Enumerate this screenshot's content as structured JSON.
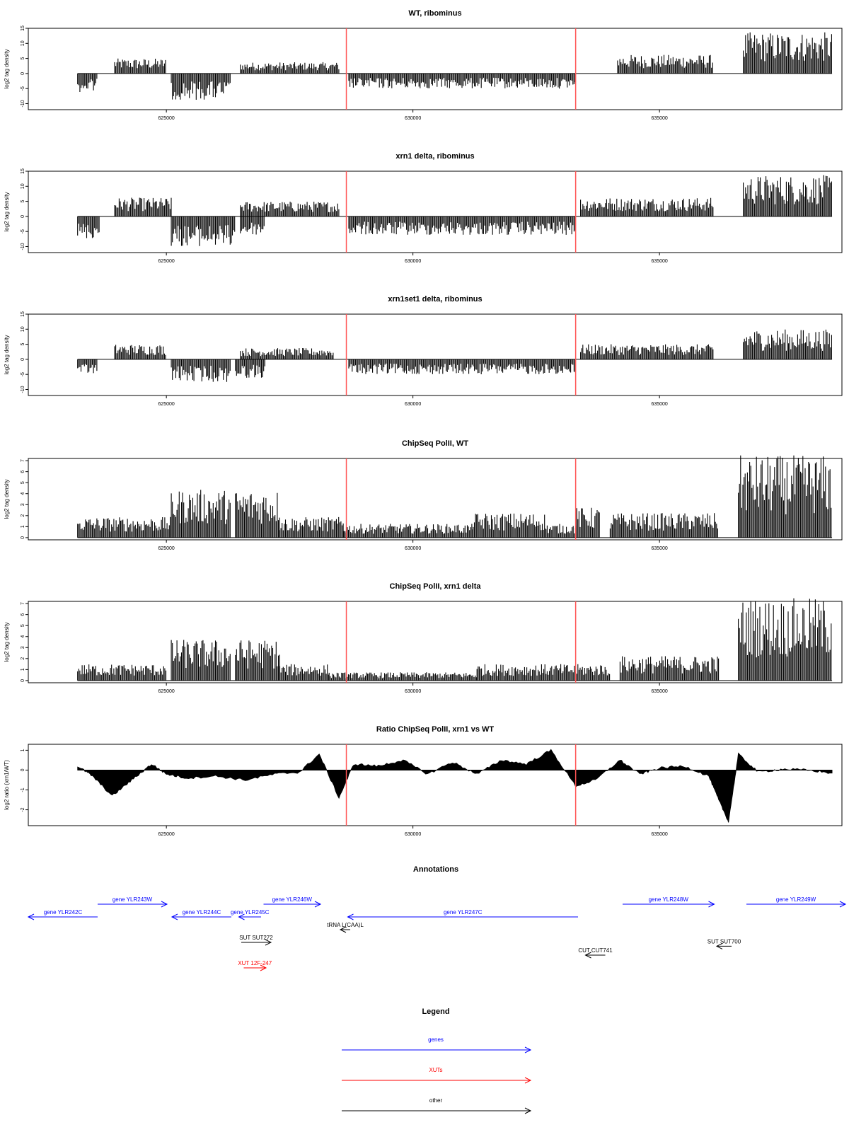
{
  "chart_data": [
    {
      "type": "bar",
      "title": "WT, ribominus",
      "ylabel": "log2 tag density",
      "ylim": [
        -12,
        15
      ],
      "yticks": [
        -10,
        -5,
        0,
        5,
        10,
        15
      ],
      "xlim": [
        622200,
        638700
      ],
      "xticks": [
        625000,
        630000,
        635000
      ],
      "x_tick_labels": [
        "625000",
        "630000",
        "635000"
      ],
      "markers": [
        628650,
        633300
      ],
      "marker_color": "#ff5555",
      "bar_color": "#000000",
      "plus_strand_segments": [
        {
          "x": [
            623950,
            625000
          ],
          "value": 4
        },
        {
          "x": [
            626500,
            628500
          ],
          "value": 3
        },
        {
          "x": [
            634150,
            636100
          ],
          "value": 5
        },
        {
          "x": [
            636700,
            638500
          ],
          "value": 11
        }
      ],
      "minus_strand_segments": [
        {
          "x": [
            623200,
            623600
          ],
          "value": -5
        },
        {
          "x": [
            625100,
            626300
          ],
          "value": -7
        },
        {
          "x": [
            628700,
            633300
          ],
          "value": -4
        }
      ]
    },
    {
      "type": "bar",
      "title": "xrn1 delta, ribominus",
      "ylabel": "log2 tag density",
      "ylim": [
        -12,
        15
      ],
      "yticks": [
        -10,
        -5,
        0,
        5,
        10,
        15
      ],
      "xlim": [
        622200,
        638700
      ],
      "xticks": [
        625000,
        630000,
        635000
      ],
      "x_tick_labels": [
        "625000",
        "630000",
        "635000"
      ],
      "markers": [
        628650,
        633300
      ],
      "marker_color": "#ff5555",
      "bar_color": "#000000",
      "plus_strand_segments": [
        {
          "x": [
            623950,
            625100
          ],
          "value": 5
        },
        {
          "x": [
            626500,
            628500
          ],
          "value": 4
        },
        {
          "x": [
            633400,
            636100
          ],
          "value": 5
        },
        {
          "x": [
            636700,
            638500
          ],
          "value": 11
        }
      ],
      "minus_strand_segments": [
        {
          "x": [
            623200,
            623650
          ],
          "value": -6
        },
        {
          "x": [
            625100,
            626400
          ],
          "value": -8
        },
        {
          "x": [
            626500,
            627000
          ],
          "value": -5
        },
        {
          "x": [
            628700,
            633300
          ],
          "value": -5
        }
      ]
    },
    {
      "type": "bar",
      "title": "xrn1set1 delta, ribominus",
      "ylabel": "log2 tag density",
      "ylim": [
        -12,
        15
      ],
      "yticks": [
        -10,
        -5,
        0,
        5,
        10,
        15
      ],
      "xlim": [
        622200,
        638700
      ],
      "xticks": [
        625000,
        630000,
        635000
      ],
      "x_tick_labels": [
        "625000",
        "630000",
        "635000"
      ],
      "markers": [
        628650,
        633300
      ],
      "marker_color": "#ff5555",
      "bar_color": "#000000",
      "plus_strand_segments": [
        {
          "x": [
            623950,
            625000
          ],
          "value": 4
        },
        {
          "x": [
            626500,
            628400
          ],
          "value": 3
        },
        {
          "x": [
            633400,
            636100
          ],
          "value": 4
        },
        {
          "x": [
            636700,
            638500
          ],
          "value": 8
        }
      ],
      "minus_strand_segments": [
        {
          "x": [
            623200,
            623600
          ],
          "value": -4
        },
        {
          "x": [
            625100,
            626300
          ],
          "value": -6
        },
        {
          "x": [
            626400,
            627000
          ],
          "value": -5
        },
        {
          "x": [
            628700,
            633300
          ],
          "value": -4
        }
      ]
    },
    {
      "type": "bar",
      "title": "ChipSeq PolII, WT",
      "ylabel": "log2 tag density",
      "ylim": [
        -0.2,
        7.2
      ],
      "yticks": [
        0,
        1,
        2,
        3,
        4,
        5,
        6,
        7
      ],
      "xlim": [
        622200,
        638700
      ],
      "xticks": [
        625000,
        630000,
        635000
      ],
      "x_tick_labels": [
        "625000",
        "630000",
        "635000"
      ],
      "markers": [
        628650,
        633300
      ],
      "marker_color": "#ff5555",
      "bar_color": "#000000",
      "segments": [
        {
          "x": [
            623200,
            625100
          ],
          "value": 1.5
        },
        {
          "x": [
            625100,
            626300
          ],
          "value": 3.5
        },
        {
          "x": [
            626400,
            627300
          ],
          "value": 3.5
        },
        {
          "x": [
            627300,
            628600
          ],
          "value": 1.5
        },
        {
          "x": [
            628600,
            631200
          ],
          "value": 1
        },
        {
          "x": [
            631200,
            632700
          ],
          "value": 1.8
        },
        {
          "x": [
            632700,
            633300
          ],
          "value": 1
        },
        {
          "x": [
            633300,
            633800
          ],
          "value": 2.2
        },
        {
          "x": [
            634000,
            636200
          ],
          "value": 1.8
        },
        {
          "x": [
            636600,
            638500
          ],
          "value": 6
        }
      ]
    },
    {
      "type": "bar",
      "title": "ChipSeq PolII, xrn1 delta",
      "ylabel": "log2 tag density",
      "ylim": [
        -0.2,
        7.2
      ],
      "yticks": [
        0,
        1,
        2,
        3,
        4,
        5,
        6,
        7
      ],
      "xlim": [
        622200,
        638700
      ],
      "xticks": [
        625000,
        630000,
        635000
      ],
      "x_tick_labels": [
        "625000",
        "630000",
        "635000"
      ],
      "markers": [
        628650,
        633300
      ],
      "marker_color": "#ff5555",
      "bar_color": "#000000",
      "segments": [
        {
          "x": [
            623200,
            625000
          ],
          "value": 1.2
        },
        {
          "x": [
            625100,
            626300
          ],
          "value": 3
        },
        {
          "x": [
            626400,
            627300
          ],
          "value": 3
        },
        {
          "x": [
            627300,
            628300
          ],
          "value": 1.2
        },
        {
          "x": [
            628300,
            631300
          ],
          "value": 0.6
        },
        {
          "x": [
            631300,
            633300
          ],
          "value": 1.2
        },
        {
          "x": [
            633300,
            634000
          ],
          "value": 1.2
        },
        {
          "x": [
            634200,
            636200
          ],
          "value": 1.8
        },
        {
          "x": [
            636600,
            638500
          ],
          "value": 6
        }
      ]
    },
    {
      "type": "area",
      "title": "Ratio ChipSeq PolII, xrn1 vs WT",
      "ylabel": "log2 ratio (xrn1/WT)",
      "ylim": [
        -2.8,
        1.3
      ],
      "yticks": [
        -2,
        -1,
        0,
        1
      ],
      "xlim": [
        622200,
        638700
      ],
      "xticks": [
        625000,
        630000,
        635000
      ],
      "x_tick_labels": [
        "625000",
        "630000",
        "635000"
      ],
      "markers": [
        628650,
        633300
      ],
      "marker_color": "#ff5555",
      "fill_color": "#000000",
      "x": [
        623200,
        623500,
        623900,
        624300,
        624700,
        625000,
        625400,
        626000,
        626600,
        627200,
        627700,
        628100,
        628500,
        628800,
        629300,
        629800,
        630300,
        630800,
        631300,
        631800,
        632300,
        632800,
        633300,
        633700,
        634200,
        634600,
        635000,
        635500,
        636000,
        636200,
        636400,
        636600,
        637000,
        637500,
        638000,
        638500
      ],
      "y": [
        0.2,
        -0.3,
        -1.3,
        -0.5,
        0.3,
        -0.2,
        -0.4,
        -0.3,
        -0.5,
        -0.2,
        -0.1,
        0.8,
        -1.4,
        0.3,
        0.2,
        0.5,
        -0.2,
        0.4,
        -0.2,
        0.5,
        0.3,
        1.0,
        -0.8,
        -0.5,
        0.5,
        -0.2,
        0.1,
        0.2,
        -0.3,
        -1.5,
        -2.6,
        0.8,
        -0.1,
        0.05,
        0.0,
        -0.15
      ]
    }
  ],
  "annotations": {
    "title": "Annotations",
    "genes": [
      {
        "label": "gene YLR242C",
        "start": 623600,
        "end": 622200,
        "row": 1,
        "color": "#0000ff"
      },
      {
        "label": "gene YLR243W",
        "start": 623600,
        "end": 625000,
        "row": 0,
        "color": "#0000ff"
      },
      {
        "label": "gene YLR244C",
        "start": 626300,
        "end": 625100,
        "row": 1,
        "color": "#0000ff"
      },
      {
        "label": "gene YLR245C",
        "start": 626900,
        "end": 626450,
        "row": 1,
        "color": "#0000ff"
      },
      {
        "label": "gene YLR246W",
        "start": 626950,
        "end": 628100,
        "row": 0,
        "color": "#0000ff"
      },
      {
        "label": "tRNA L(CAA)L",
        "start": 628700,
        "end": 628500,
        "row": 2,
        "color": "#000000"
      },
      {
        "label": "gene YLR247C",
        "start": 633300,
        "end": 628650,
        "row": 1,
        "color": "#0000ff"
      },
      {
        "label": "gene YLR248W",
        "start": 634200,
        "end": 636050,
        "row": 0,
        "color": "#0000ff"
      },
      {
        "label": "gene YLR249W",
        "start": 636700,
        "end": 638700,
        "row": 0,
        "color": "#0000ff"
      },
      {
        "label": "SUT SUT272",
        "start": 626500,
        "end": 627100,
        "row": 3,
        "color": "#000000"
      },
      {
        "label": "XUT 12F-247",
        "start": 626550,
        "end": 627000,
        "row": 5,
        "color": "#ff0000"
      },
      {
        "label": "CUT CUT741",
        "start": 633850,
        "end": 633450,
        "row": 4,
        "color": "#000000"
      },
      {
        "label": "SUT SUT700",
        "start": 636400,
        "end": 636100,
        "row": 3.3,
        "color": "#000000"
      }
    ]
  },
  "legend": {
    "title": "Legend",
    "items": [
      {
        "label": "genes",
        "color": "#0000ff"
      },
      {
        "label": "XUTs",
        "color": "#ff0000"
      },
      {
        "label": "other",
        "color": "#000000"
      }
    ]
  }
}
